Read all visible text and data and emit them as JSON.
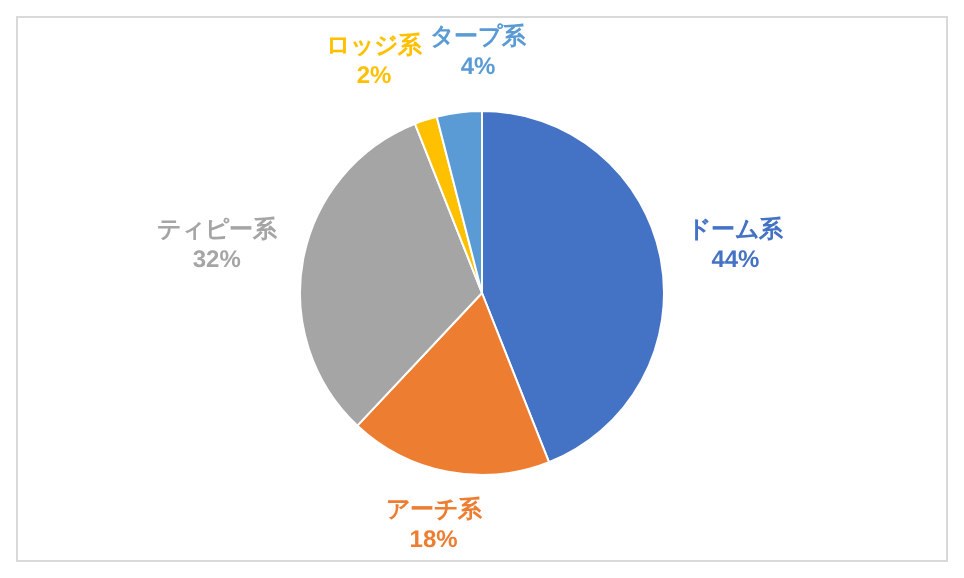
{
  "chart_data": {
    "type": "pie",
    "categories": [
      "ドーム系",
      "アーチ系",
      "ティピー系",
      "ロッジ系",
      "タープ系"
    ],
    "values": [
      44,
      18,
      32,
      2,
      4
    ],
    "colors": [
      "#4472c4",
      "#ed7d31",
      "#a5a5a5",
      "#ffc000",
      "#5b9bd5"
    ],
    "value_labels": [
      "44%",
      "18%",
      "32%",
      "2%",
      "4%"
    ],
    "legend": false
  }
}
